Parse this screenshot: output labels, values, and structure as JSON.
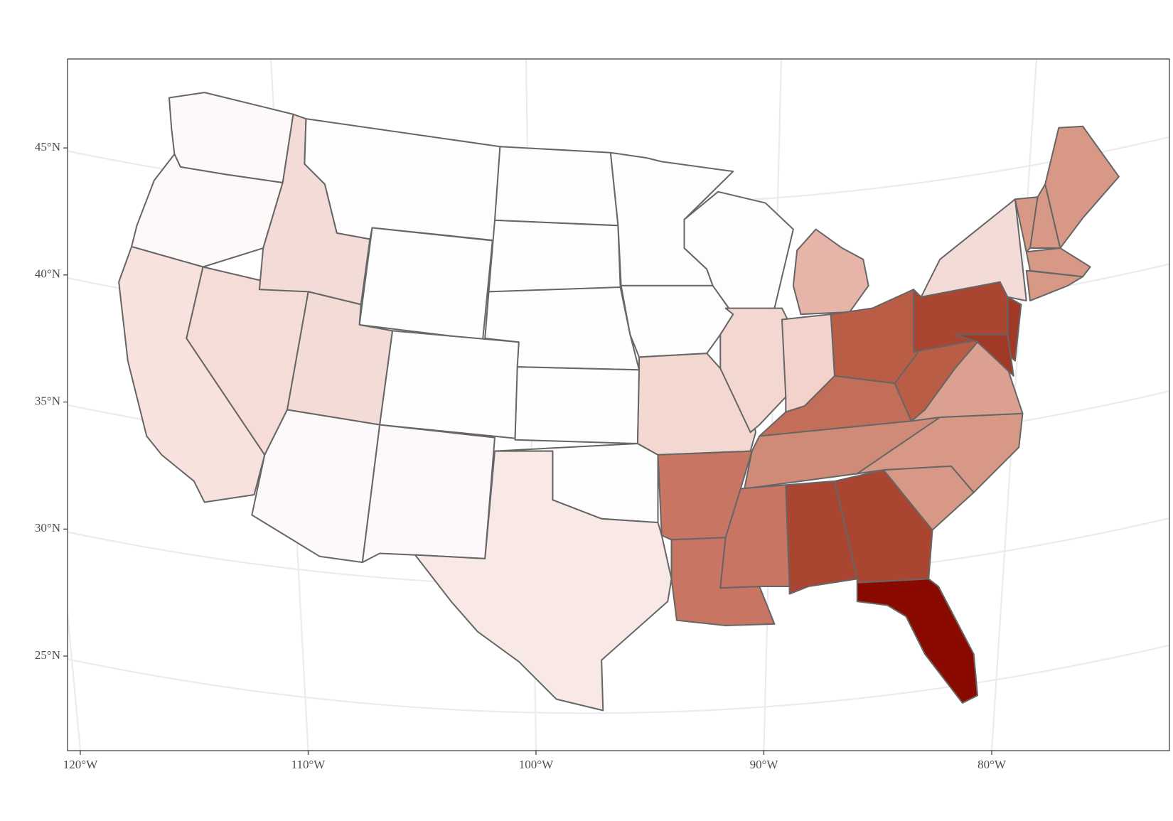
{
  "chart_data": {
    "type": "map",
    "xlim": [
      -120.56,
      -72.2
    ],
    "ylim": [
      21.28,
      48.5
    ],
    "xticks": [
      {
        "value": -120,
        "label": "120°W"
      },
      {
        "value": -110,
        "label": "110°W"
      },
      {
        "value": -100,
        "label": "100°W"
      },
      {
        "value": -90,
        "label": "90°W"
      },
      {
        "value": -80,
        "label": "80°W"
      }
    ],
    "yticks": [
      {
        "value": 25,
        "label": "25°N"
      },
      {
        "value": 30,
        "label": "30°N"
      },
      {
        "value": 35,
        "label": "35°N"
      },
      {
        "value": 40,
        "label": "40°N"
      },
      {
        "value": 45,
        "label": "45°N"
      }
    ],
    "grid": true
  }
}
